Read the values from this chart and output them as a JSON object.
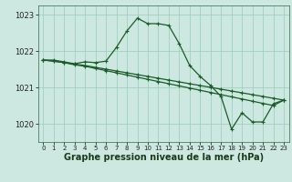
{
  "background_color": "#cce8e0",
  "line_color": "#1a5c28",
  "grid_color": "#99ccbb",
  "xlabel": "Graphe pression niveau de la mer (hPa)",
  "ylim": [
    1019.5,
    1023.25
  ],
  "xlim": [
    -0.5,
    23.5
  ],
  "yticks": [
    1020,
    1021,
    1022,
    1023
  ],
  "ytick_labels": [
    "1020",
    "1021",
    "1022",
    "1023"
  ],
  "xticks": [
    0,
    1,
    2,
    3,
    4,
    5,
    6,
    7,
    8,
    9,
    10,
    11,
    12,
    13,
    14,
    15,
    16,
    17,
    18,
    19,
    20,
    21,
    22,
    23
  ],
  "series": [
    {
      "x": [
        0,
        1,
        2,
        3,
        4,
        5,
        6,
        7,
        8,
        9,
        10,
        11,
        12,
        13,
        14,
        15,
        16,
        17,
        18,
        19,
        20,
        21,
        22,
        23
      ],
      "y": [
        1021.75,
        1021.75,
        1021.7,
        1021.65,
        1021.7,
        1021.68,
        1021.72,
        1022.1,
        1022.55,
        1022.9,
        1022.75,
        1022.75,
        1022.7,
        1022.2,
        1021.6,
        1021.3,
        1021.05,
        1020.75,
        1019.85,
        1020.3,
        1020.05,
        1020.05,
        1020.55,
        1020.65
      ]
    },
    {
      "x": [
        0,
        1,
        2,
        3,
        4,
        5,
        6,
        7,
        8,
        9,
        10,
        11,
        12,
        13,
        14,
        15,
        16,
        17,
        18,
        19,
        20,
        21,
        22,
        23
      ],
      "y": [
        1021.75,
        1021.72,
        1021.68,
        1021.64,
        1021.6,
        1021.55,
        1021.5,
        1021.45,
        1021.4,
        1021.35,
        1021.3,
        1021.25,
        1021.2,
        1021.15,
        1021.1,
        1021.05,
        1021.0,
        1020.95,
        1020.9,
        1020.85,
        1020.8,
        1020.75,
        1020.7,
        1020.65
      ]
    },
    {
      "x": [
        0,
        1,
        2,
        3,
        4,
        5,
        6,
        7,
        8,
        9,
        10,
        11,
        12,
        13,
        14,
        15,
        16,
        17,
        18,
        19,
        20,
        21,
        22,
        23
      ],
      "y": [
        1021.75,
        1021.72,
        1021.68,
        1021.62,
        1021.58,
        1021.52,
        1021.46,
        1021.4,
        1021.34,
        1021.28,
        1021.22,
        1021.16,
        1021.1,
        1021.04,
        1020.98,
        1020.92,
        1020.86,
        1020.8,
        1020.74,
        1020.68,
        1020.62,
        1020.56,
        1020.5,
        1020.65
      ]
    }
  ],
  "marker": "+",
  "markersize": 3.5,
  "linewidth": 0.9,
  "xlabel_fontsize": 7,
  "tick_fontsize": 6
}
